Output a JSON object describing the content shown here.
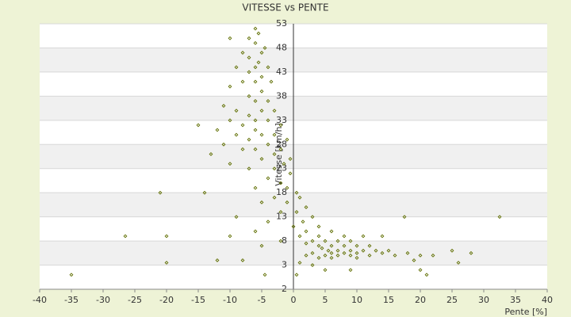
{
  "chart_data": {
    "type": "scatter",
    "title": "VITESSE vs PENTE",
    "x_label": "Pente [%]",
    "y_label": "Vitesse [km/h]",
    "color": "#5f6e00",
    "xlim": [
      -40,
      40
    ],
    "xticks": [
      -40,
      -35,
      -30,
      -25,
      -20,
      -15,
      -10,
      -5,
      0,
      5,
      10,
      15,
      20,
      25,
      30,
      35,
      40
    ],
    "ylim": [
      -2,
      53
    ],
    "yticks": [
      -2,
      3,
      8,
      13,
      18,
      23,
      28,
      33,
      38,
      43,
      48,
      53
    ],
    "grid": true,
    "x": [
      -6,
      -5.5,
      -7,
      -10,
      -6,
      -4.5,
      -8,
      -5,
      -7,
      -5.5,
      -6,
      -9,
      -4,
      -7,
      -5,
      -6,
      -8,
      -3.5,
      -10,
      -5,
      -7,
      -6,
      -4,
      -11,
      -9,
      -5,
      -3,
      -7,
      -6,
      -10,
      -4,
      -15,
      -8,
      -2,
      -6,
      -12,
      -5,
      -3,
      -9,
      -7,
      -1,
      -4,
      -11,
      -6,
      -2,
      -8,
      -13,
      -3,
      -0.5,
      -5,
      -1.5,
      -10,
      -7,
      -3,
      -0.5,
      -4,
      -2,
      -1,
      -6,
      0.5,
      -21,
      -14,
      -3,
      1,
      -1,
      -5,
      2,
      -2,
      0.5,
      3,
      -9,
      1.5,
      -4,
      4,
      0,
      2,
      6,
      -6,
      -26.5,
      -20,
      -10,
      1,
      4,
      8,
      11,
      14,
      17.5,
      32.5,
      3,
      5,
      7,
      9,
      -2,
      2,
      4,
      6,
      8,
      10,
      12,
      4.5,
      5.5,
      7,
      9,
      11,
      13,
      15,
      3,
      6,
      8,
      10,
      14,
      18,
      25,
      28,
      2,
      5,
      7,
      9,
      12,
      16,
      20,
      22,
      4,
      6,
      10,
      19,
      26,
      -8,
      -12,
      -20,
      1,
      3,
      9,
      21,
      -35,
      -4.5,
      0.5,
      5,
      20,
      -5
    ],
    "values": [
      52,
      51,
      50,
      50,
      49,
      48,
      47,
      47,
      46,
      45,
      44,
      44,
      44,
      43,
      42,
      41,
      41,
      41,
      40,
      39,
      38,
      37,
      37,
      36,
      35,
      35,
      35,
      34,
      33,
      33,
      33,
      32,
      32,
      32,
      31,
      31,
      30,
      30,
      30,
      29,
      29,
      28,
      28,
      27,
      27,
      27,
      26,
      26,
      25,
      25,
      24,
      24,
      23,
      23,
      22,
      21,
      20,
      19,
      19,
      18,
      18,
      18,
      17,
      17,
      16,
      16,
      15,
      14,
      14,
      13,
      13,
      12,
      12,
      11,
      11,
      10,
      10,
      10,
      9,
      9,
      9,
      9,
      9,
      9,
      9,
      9,
      13,
      13,
      8,
      8,
      8,
      8,
      8,
      7.5,
      7,
      7,
      7,
      7,
      7,
      6.5,
      6,
      6,
      6,
      6,
      6,
      6,
      5.5,
      5.5,
      5.5,
      5.5,
      5.5,
      5.5,
      6,
      5.5,
      5,
      5,
      5,
      5,
      5,
      5,
      5,
      5,
      4.5,
      4.5,
      4.5,
      4,
      3.5,
      4,
      4,
      3.5,
      3.5,
      3,
      2,
      1,
      1,
      1,
      1,
      2,
      2,
      7
    ]
  }
}
